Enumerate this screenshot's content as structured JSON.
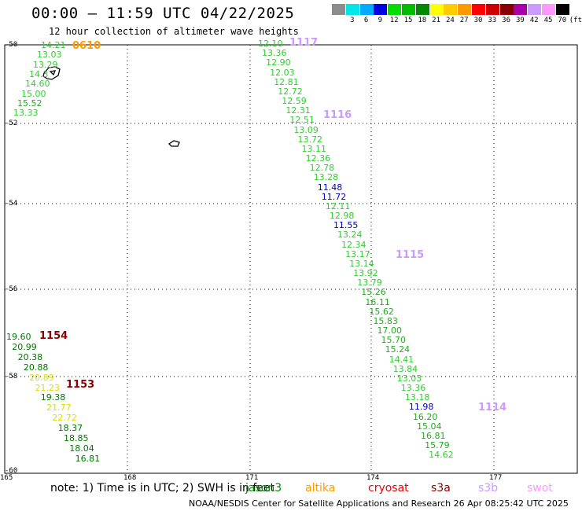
{
  "header": {
    "title": "00:00 – 11:59 UTC 04/22/2025",
    "subtitle": "12 hour collection of altimeter wave heights"
  },
  "scale": {
    "unit": "(ft)",
    "items": [
      {
        "label": "",
        "color": "#8c8c8c"
      },
      {
        "label": "3",
        "color": "#00e6e6"
      },
      {
        "label": "6",
        "color": "#00aaff"
      },
      {
        "label": "9",
        "color": "#0000e6"
      },
      {
        "label": "12",
        "color": "#00dd00"
      },
      {
        "label": "15",
        "color": "#00bb00"
      },
      {
        "label": "18",
        "color": "#008800"
      },
      {
        "label": "21",
        "color": "#ffff00"
      },
      {
        "label": "24",
        "color": "#ffcc00"
      },
      {
        "label": "27",
        "color": "#ff9900"
      },
      {
        "label": "30",
        "color": "#ff0000"
      },
      {
        "label": "33",
        "color": "#cc0000"
      },
      {
        "label": "36",
        "color": "#880000"
      },
      {
        "label": "39",
        "color": "#aa00aa"
      },
      {
        "label": "42",
        "color": "#cc99ff"
      },
      {
        "label": "45",
        "color": "#ff99ff"
      },
      {
        "label": "70",
        "color": "#000000"
      }
    ]
  },
  "axes": {
    "lat_labels": [
      "-50",
      "-52",
      "-54",
      "-56",
      "-58",
      "-60"
    ],
    "lon_labels": [
      "165",
      "168",
      "171",
      "174",
      "177"
    ]
  },
  "passes": [
    {
      "label": "0610",
      "color": "#ff9900"
    },
    {
      "label": "1117",
      "color": "#cc99ff"
    },
    {
      "label": "1116",
      "color": "#cc99ff"
    },
    {
      "label": "1115",
      "color": "#cc99ff"
    },
    {
      "label": "1154",
      "color": "#880000"
    },
    {
      "label": "1153",
      "color": "#880000"
    },
    {
      "label": "1114",
      "color": "#cc99ff"
    }
  ],
  "track_a": [
    {
      "v": "14.21",
      "c": "#33cc33"
    },
    {
      "v": "13.03",
      "c": "#33cc33"
    },
    {
      "v": "13.29",
      "c": "#33cc33"
    },
    {
      "v": "14.3",
      "c": "#33cc33"
    },
    {
      "v": "14.60",
      "c": "#33cc33"
    },
    {
      "v": "15.00",
      "c": "#33cc33"
    },
    {
      "v": "15.52",
      "c": "#22aa22"
    },
    {
      "v": "13.33",
      "c": "#33cc33"
    }
  ],
  "track_b": [
    {
      "v": "12.10",
      "c": "#33cc33"
    },
    {
      "v": "13.36",
      "c": "#33cc33"
    },
    {
      "v": "12.90",
      "c": "#33cc33"
    },
    {
      "v": "12.03",
      "c": "#33cc33"
    },
    {
      "v": "12.81",
      "c": "#33cc33"
    },
    {
      "v": "12.72",
      "c": "#33cc33"
    },
    {
      "v": "12.59",
      "c": "#33cc33"
    },
    {
      "v": "12.31",
      "c": "#33cc33"
    },
    {
      "v": "12.51",
      "c": "#33cc33"
    },
    {
      "v": "13.09",
      "c": "#33cc33"
    },
    {
      "v": "13.72",
      "c": "#33cc33"
    },
    {
      "v": "13.11",
      "c": "#33cc33"
    },
    {
      "v": "12.36",
      "c": "#33cc33"
    },
    {
      "v": "12.78",
      "c": "#33cc33"
    },
    {
      "v": "13.28",
      "c": "#33cc33"
    },
    {
      "v": "11.48",
      "c": "#0000cc"
    },
    {
      "v": "11.72",
      "c": "#0000cc"
    },
    {
      "v": "12.11",
      "c": "#33cc33"
    },
    {
      "v": "12.98",
      "c": "#33cc33"
    },
    {
      "v": "11.55",
      "c": "#0000cc"
    },
    {
      "v": "13.24",
      "c": "#33cc33"
    },
    {
      "v": "12.34",
      "c": "#33cc33"
    },
    {
      "v": "13.17",
      "c": "#33cc33"
    },
    {
      "v": "13.14",
      "c": "#33cc33"
    },
    {
      "v": "13.92",
      "c": "#33cc33"
    },
    {
      "v": "13.79",
      "c": "#33cc33"
    },
    {
      "v": "15.26",
      "c": "#22aa22"
    },
    {
      "v": "16.11",
      "c": "#22aa22"
    },
    {
      "v": "15.62",
      "c": "#22aa22"
    },
    {
      "v": "15.83",
      "c": "#22aa22"
    },
    {
      "v": "17.00",
      "c": "#22aa22"
    },
    {
      "v": "15.70",
      "c": "#22aa22"
    },
    {
      "v": "15.24",
      "c": "#22aa22"
    },
    {
      "v": "14.41",
      "c": "#33cc33"
    },
    {
      "v": "13.84",
      "c": "#33cc33"
    },
    {
      "v": "13.03",
      "c": "#33cc33"
    },
    {
      "v": "13.36",
      "c": "#33cc33"
    },
    {
      "v": "13.18",
      "c": "#33cc33"
    },
    {
      "v": "11.98",
      "c": "#0000cc"
    },
    {
      "v": "16.20",
      "c": "#22aa22"
    },
    {
      "v": "15.04",
      "c": "#22aa22"
    },
    {
      "v": "16.81",
      "c": "#22aa22"
    },
    {
      "v": "15.79",
      "c": "#22aa22"
    },
    {
      "v": "14.62",
      "c": "#33cc33"
    }
  ],
  "track_c": [
    {
      "v": "19.60",
      "c": "#007700"
    },
    {
      "v": "20.99",
      "c": "#007700"
    },
    {
      "v": "20.38",
      "c": "#007700"
    },
    {
      "v": "20.88",
      "c": "#007700"
    },
    {
      "v": "20.89",
      "c": "#dddd00"
    },
    {
      "v": "21.23",
      "c": "#dddd00"
    },
    {
      "v": "19.38",
      "c": "#007700"
    },
    {
      "v": "21.77",
      "c": "#dddd00"
    },
    {
      "v": "22.72",
      "c": "#dddd00"
    },
    {
      "v": "18.37",
      "c": "#007700"
    },
    {
      "v": "18.85",
      "c": "#007700"
    },
    {
      "v": "18.04",
      "c": "#007700"
    },
    {
      "v": "16.81",
      "c": "#007700"
    }
  ],
  "footer": {
    "note": "note:  1) Time is in UTC;  2) SWH is in feet",
    "satellites": [
      {
        "name": "jason3",
        "color": "#008800"
      },
      {
        "name": "altika",
        "color": "#ff9900"
      },
      {
        "name": "cryosat",
        "color": "#ee0000"
      },
      {
        "name": "s3a",
        "color": "#880000"
      },
      {
        "name": "s3b",
        "color": "#cc99ff"
      },
      {
        "name": "swot",
        "color": "#ff99ff"
      }
    ],
    "credit": "NOAA/NESDIS Center for Satellite Applications and Research     26 Apr 08:25:42 UTC 2025"
  }
}
